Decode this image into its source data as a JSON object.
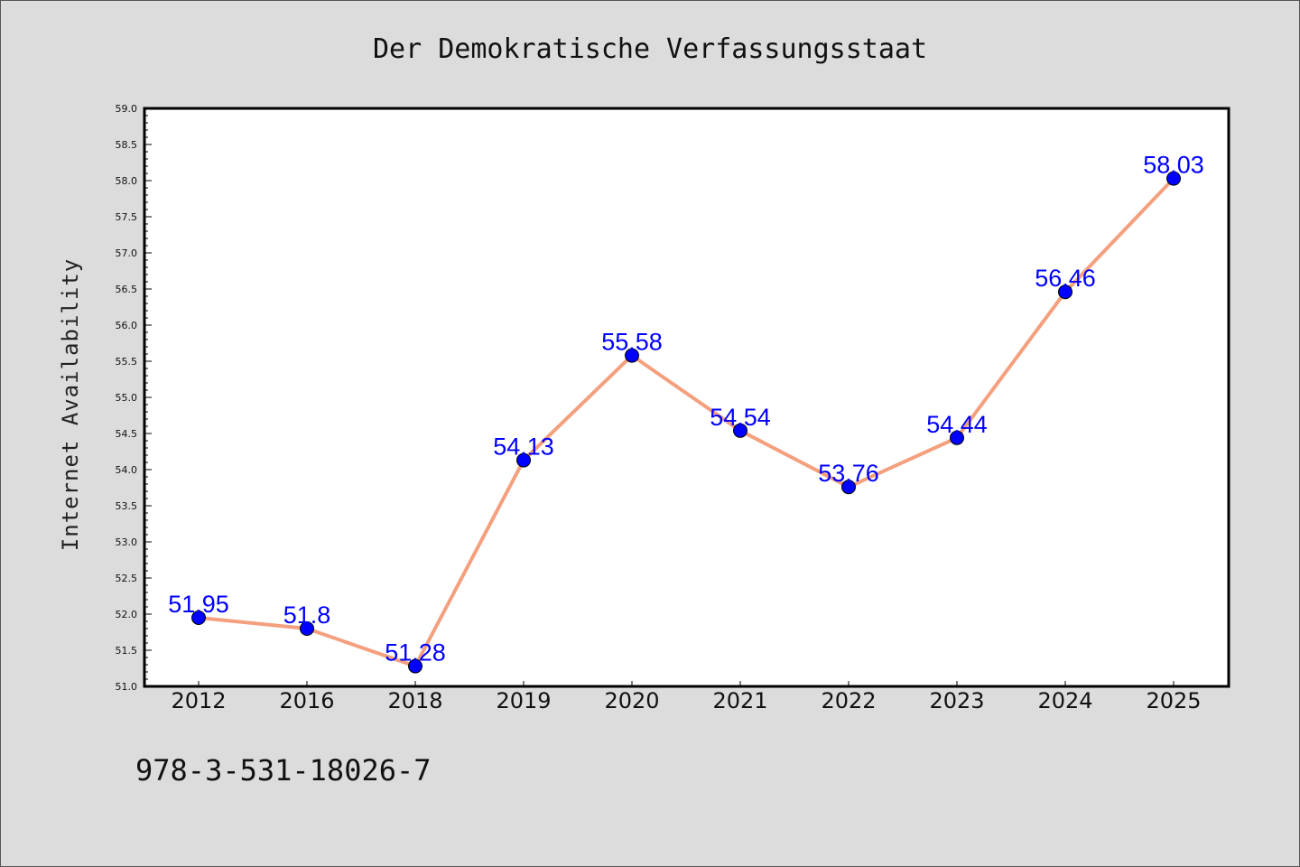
{
  "chart_data": {
    "type": "line",
    "title": "Der Demokratische Verfassungsstaat",
    "xlabel": "",
    "ylabel": "Internet Availability",
    "categories": [
      "2012",
      "2016",
      "2018",
      "2019",
      "2020",
      "2021",
      "2022",
      "2023",
      "2024",
      "2025"
    ],
    "series": [
      {
        "values": [
          51.95,
          51.8,
          51.28,
          54.13,
          55.58,
          54.54,
          53.76,
          54.44,
          56.46,
          58.03
        ],
        "labels": [
          "51.95",
          "51.8",
          "51.28",
          "54.13",
          "55.58",
          "54.54",
          "53.76",
          "54.44",
          "56.46",
          "58.03"
        ],
        "line_color": "#f4a07e",
        "marker_color": "#0000ff"
      }
    ],
    "ylim": [
      51.0,
      59.0
    ],
    "yticks": [
      "51.0",
      "51.5",
      "52.0",
      "52.5",
      "53.0",
      "53.5",
      "54.0",
      "54.5",
      "55.0",
      "55.5",
      "56.0",
      "56.5",
      "57.0",
      "57.5",
      "58.0",
      "58.5",
      "59.0"
    ],
    "grid": false,
    "legend": "none"
  },
  "footnote": "978-3-531-18026-7",
  "colors": {
    "background": "#dcdcdc",
    "plot_background": "#ffffff",
    "line": "#f4a07e",
    "marker": "#0000ff",
    "data_label": "#0000ff"
  }
}
